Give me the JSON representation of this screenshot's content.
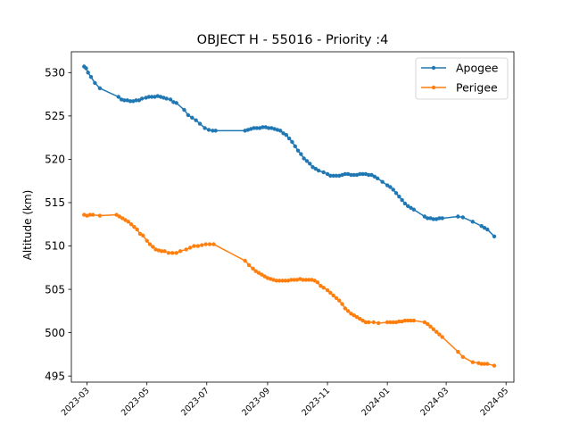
{
  "chart_data": {
    "type": "line",
    "title": "OBJECT H - 55016 - Priority :4",
    "xlabel": "",
    "ylabel": "Altitude (km)",
    "xlim": [
      "2023-02-13",
      "2024-05-09"
    ],
    "ylim": [
      494.3,
      532.4
    ],
    "x_ticks": [
      "2023-03",
      "2023-05",
      "2023-07",
      "2023-09",
      "2023-11",
      "2024-01",
      "2024-03",
      "2024-05"
    ],
    "x_tick_dates": [
      "2023-03-01",
      "2023-05-01",
      "2023-07-01",
      "2023-09-01",
      "2023-11-01",
      "2024-01-01",
      "2024-03-01",
      "2024-05-01"
    ],
    "y_ticks": [
      495,
      500,
      505,
      510,
      515,
      520,
      525,
      530
    ],
    "grid": false,
    "legend_position": "top-right",
    "series": [
      {
        "name": "Apogee",
        "color": "#1f77b4",
        "x": [
          "2023-02-26",
          "2023-02-28",
          "2023-03-02",
          "2023-03-05",
          "2023-03-09",
          "2023-03-14",
          "2023-04-02",
          "2023-04-05",
          "2023-04-08",
          "2023-04-11",
          "2023-04-14",
          "2023-04-17",
          "2023-04-20",
          "2023-04-23",
          "2023-04-26",
          "2023-04-30",
          "2023-05-03",
          "2023-05-06",
          "2023-05-09",
          "2023-05-12",
          "2023-05-15",
          "2023-05-18",
          "2023-05-21",
          "2023-05-25",
          "2023-05-28",
          "2023-05-31",
          "2023-06-08",
          "2023-06-12",
          "2023-06-16",
          "2023-06-20",
          "2023-06-24",
          "2023-06-29",
          "2023-07-03",
          "2023-07-07",
          "2023-07-10",
          "2023-08-09",
          "2023-08-12",
          "2023-08-15",
          "2023-08-18",
          "2023-08-21",
          "2023-08-24",
          "2023-08-27",
          "2023-08-30",
          "2023-09-02",
          "2023-09-05",
          "2023-09-08",
          "2023-09-11",
          "2023-09-14",
          "2023-09-17",
          "2023-09-20",
          "2023-09-23",
          "2023-09-26",
          "2023-09-29",
          "2023-10-02",
          "2023-10-05",
          "2023-10-08",
          "2023-10-11",
          "2023-10-14",
          "2023-10-17",
          "2023-10-20",
          "2023-10-23",
          "2023-10-28",
          "2023-11-01",
          "2023-11-04",
          "2023-11-07",
          "2023-11-10",
          "2023-11-13",
          "2023-11-16",
          "2023-11-19",
          "2023-11-22",
          "2023-11-25",
          "2023-11-28",
          "2023-12-01",
          "2023-12-04",
          "2023-12-07",
          "2023-12-10",
          "2023-12-13",
          "2023-12-16",
          "2023-12-19",
          "2023-12-22",
          "2023-12-27",
          "2024-01-01",
          "2024-01-04",
          "2024-01-07",
          "2024-01-10",
          "2024-01-13",
          "2024-01-16",
          "2024-01-19",
          "2024-01-22",
          "2024-01-25",
          "2024-01-28",
          "2024-02-08",
          "2024-02-11",
          "2024-02-14",
          "2024-02-17",
          "2024-02-20",
          "2024-02-23",
          "2024-02-26",
          "2024-03-13",
          "2024-03-18",
          "2024-03-28",
          "2024-04-06",
          "2024-04-09",
          "2024-04-12",
          "2024-04-19"
        ],
        "y": [
          530.7,
          530.5,
          530.0,
          529.5,
          528.8,
          528.2,
          527.2,
          526.9,
          526.8,
          526.8,
          526.7,
          526.7,
          526.8,
          526.8,
          527.0,
          527.1,
          527.2,
          527.2,
          527.2,
          527.3,
          527.2,
          527.1,
          527.0,
          526.9,
          526.6,
          526.5,
          525.7,
          525.1,
          524.8,
          524.5,
          524.1,
          523.6,
          523.4,
          523.3,
          523.3,
          523.3,
          523.4,
          523.5,
          523.6,
          523.6,
          523.6,
          523.7,
          523.7,
          523.6,
          523.6,
          523.5,
          523.4,
          523.3,
          523.0,
          522.8,
          522.4,
          522.0,
          521.5,
          521.0,
          520.6,
          520.1,
          519.8,
          519.5,
          519.1,
          518.9,
          518.7,
          518.5,
          518.3,
          518.1,
          518.1,
          518.1,
          518.1,
          518.2,
          518.3,
          518.3,
          518.2,
          518.2,
          518.2,
          518.3,
          518.3,
          518.3,
          518.2,
          518.2,
          518.0,
          517.8,
          517.4,
          517.0,
          516.8,
          516.5,
          516.1,
          515.7,
          515.3,
          514.9,
          514.6,
          514.4,
          514.2,
          513.4,
          513.2,
          513.2,
          513.1,
          513.1,
          513.2,
          513.2,
          513.4,
          513.3,
          512.8,
          512.3,
          512.1,
          511.9,
          511.1
        ]
      },
      {
        "name": "Perigee",
        "color": "#ff7f0e",
        "x": [
          "2023-02-26",
          "2023-03-01",
          "2023-03-04",
          "2023-03-07",
          "2023-03-14",
          "2023-03-31",
          "2023-04-03",
          "2023-04-06",
          "2023-04-09",
          "2023-04-12",
          "2023-04-15",
          "2023-04-18",
          "2023-04-21",
          "2023-04-24",
          "2023-04-27",
          "2023-05-01",
          "2023-05-04",
          "2023-05-07",
          "2023-05-10",
          "2023-05-13",
          "2023-05-16",
          "2023-05-19",
          "2023-05-23",
          "2023-05-27",
          "2023-05-31",
          "2023-06-04",
          "2023-06-10",
          "2023-06-14",
          "2023-06-18",
          "2023-06-22",
          "2023-06-26",
          "2023-06-30",
          "2023-07-04",
          "2023-07-08",
          "2023-08-09",
          "2023-08-13",
          "2023-08-17",
          "2023-08-20",
          "2023-08-23",
          "2023-08-26",
          "2023-08-29",
          "2023-09-01",
          "2023-09-04",
          "2023-09-07",
          "2023-09-10",
          "2023-09-13",
          "2023-09-16",
          "2023-09-19",
          "2023-09-22",
          "2023-09-25",
          "2023-09-28",
          "2023-10-01",
          "2023-10-04",
          "2023-10-07",
          "2023-10-10",
          "2023-10-13",
          "2023-10-16",
          "2023-10-19",
          "2023-10-22",
          "2023-10-25",
          "2023-10-28",
          "2023-11-01",
          "2023-11-04",
          "2023-11-07",
          "2023-11-10",
          "2023-11-13",
          "2023-11-16",
          "2023-11-19",
          "2023-11-22",
          "2023-11-25",
          "2023-11-28",
          "2023-12-01",
          "2023-12-04",
          "2023-12-07",
          "2023-12-10",
          "2023-12-13",
          "2023-12-18",
          "2023-12-23",
          "2024-01-01",
          "2024-01-04",
          "2024-01-07",
          "2024-01-10",
          "2024-01-13",
          "2024-01-16",
          "2024-01-19",
          "2024-01-22",
          "2024-01-25",
          "2024-01-28",
          "2024-02-08",
          "2024-02-11",
          "2024-02-14",
          "2024-02-17",
          "2024-02-20",
          "2024-02-23",
          "2024-02-26",
          "2024-03-13",
          "2024-03-18",
          "2024-03-28",
          "2024-04-03",
          "2024-04-06",
          "2024-04-09",
          "2024-04-12",
          "2024-04-19"
        ],
        "y": [
          513.6,
          513.5,
          513.6,
          513.6,
          513.5,
          513.6,
          513.4,
          513.2,
          513.0,
          512.8,
          512.5,
          512.2,
          511.9,
          511.4,
          511.2,
          510.6,
          510.2,
          509.9,
          509.6,
          509.5,
          509.4,
          509.4,
          509.2,
          509.2,
          509.2,
          509.4,
          509.6,
          509.8,
          510.0,
          510.0,
          510.1,
          510.2,
          510.2,
          510.2,
          508.3,
          507.8,
          507.4,
          507.1,
          506.9,
          506.7,
          506.5,
          506.3,
          506.2,
          506.1,
          506.0,
          506.0,
          506.0,
          506.0,
          506.0,
          506.1,
          506.1,
          506.1,
          506.2,
          506.1,
          506.1,
          506.1,
          506.1,
          506.0,
          505.8,
          505.4,
          505.2,
          504.9,
          504.6,
          504.3,
          504.0,
          503.7,
          503.3,
          502.8,
          502.5,
          502.2,
          502.0,
          501.8,
          501.6,
          501.4,
          501.2,
          501.2,
          501.2,
          501.1,
          501.2,
          501.2,
          501.2,
          501.2,
          501.3,
          501.3,
          501.4,
          501.4,
          501.4,
          501.4,
          501.2,
          501.0,
          500.7,
          500.4,
          500.1,
          499.8,
          499.5,
          497.8,
          497.2,
          496.6,
          496.5,
          496.4,
          496.4,
          496.4,
          496.2
        ]
      }
    ]
  }
}
